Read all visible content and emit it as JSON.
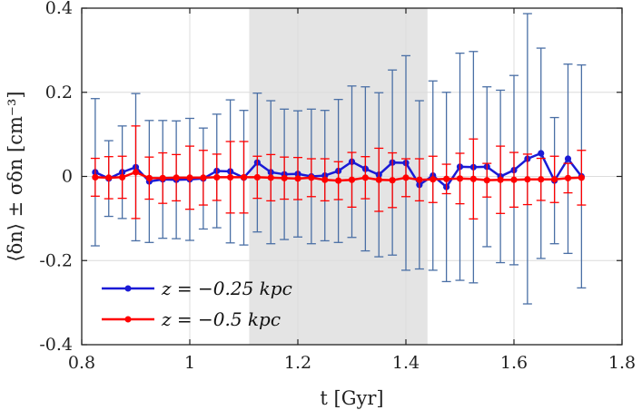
{
  "chart_data": {
    "type": "line",
    "xlabel": "t [Gyr]",
    "ylabel": "⟨δn⟩ ± σδn [cm⁻³]",
    "xlim": [
      0.8,
      1.8
    ],
    "ylim": [
      -0.4,
      0.4
    ],
    "xticks": [
      "0.8",
      "1",
      "1.2",
      "1.4",
      "1.6",
      "1.8"
    ],
    "yticks": [
      "-0.4",
      "-0.2",
      "0",
      "0.2",
      "0.4"
    ],
    "grid": true,
    "legend": "bottom-left",
    "shaded_region": [
      1.11,
      1.44
    ],
    "x": [
      0.825,
      0.85,
      0.875,
      0.9,
      0.925,
      0.95,
      0.975,
      1.0,
      1.025,
      1.05,
      1.075,
      1.1,
      1.125,
      1.15,
      1.175,
      1.2,
      1.225,
      1.25,
      1.275,
      1.3,
      1.325,
      1.35,
      1.375,
      1.4,
      1.425,
      1.45,
      1.475,
      1.5,
      1.525,
      1.55,
      1.575,
      1.6,
      1.625,
      1.65,
      1.675,
      1.7,
      1.725
    ],
    "series": [
      {
        "name": "z = −0.25 kpc",
        "color": "#1a1ad6",
        "errcolor": "#4a6fa5",
        "values": [
          0.01,
          -0.005,
          0.01,
          0.022,
          -0.012,
          -0.007,
          -0.008,
          -0.007,
          -0.005,
          0.013,
          0.012,
          -0.003,
          0.033,
          0.01,
          0.005,
          0.006,
          0.0,
          0.002,
          0.013,
          0.035,
          0.018,
          0.004,
          0.033,
          0.032,
          -0.02,
          0.002,
          -0.025,
          0.023,
          0.022,
          0.023,
          0.0,
          0.015,
          0.042,
          0.055,
          -0.01,
          0.042,
          0.0
        ],
        "errors": [
          0.175,
          0.09,
          0.11,
          0.175,
          0.145,
          0.14,
          0.14,
          0.145,
          0.12,
          0.135,
          0.17,
          0.16,
          0.165,
          0.17,
          0.155,
          0.15,
          0.16,
          0.155,
          0.17,
          0.18,
          0.195,
          0.195,
          0.22,
          0.255,
          0.2,
          0.225,
          0.225,
          0.27,
          0.275,
          0.19,
          0.205,
          0.225,
          0.345,
          0.25,
          0.15,
          0.225,
          0.265
        ]
      },
      {
        "name": "z = −0.5 kpc",
        "color": "#ff0000",
        "errcolor": "#ff0000",
        "values": [
          -0.002,
          -0.003,
          -0.002,
          0.01,
          -0.004,
          -0.004,
          -0.003,
          -0.003,
          -0.003,
          -0.002,
          -0.002,
          -0.002,
          -0.002,
          -0.003,
          -0.004,
          -0.005,
          -0.003,
          -0.008,
          -0.01,
          -0.008,
          -0.003,
          -0.008,
          -0.009,
          -0.003,
          -0.008,
          -0.007,
          -0.006,
          -0.005,
          -0.006,
          -0.009,
          -0.008,
          -0.008,
          -0.007,
          -0.007,
          -0.007,
          -0.004,
          -0.003
        ],
        "errors": [
          0.045,
          0.05,
          0.05,
          0.11,
          0.05,
          0.06,
          0.055,
          0.075,
          0.065,
          0.055,
          0.085,
          0.085,
          0.05,
          0.055,
          0.05,
          0.05,
          0.045,
          0.05,
          0.045,
          0.065,
          0.05,
          0.075,
          0.065,
          0.045,
          0.05,
          0.055,
          0.035,
          0.06,
          0.095,
          0.04,
          0.08,
          0.065,
          0.06,
          0.05,
          0.055,
          0.035,
          0.065
        ]
      }
    ]
  }
}
